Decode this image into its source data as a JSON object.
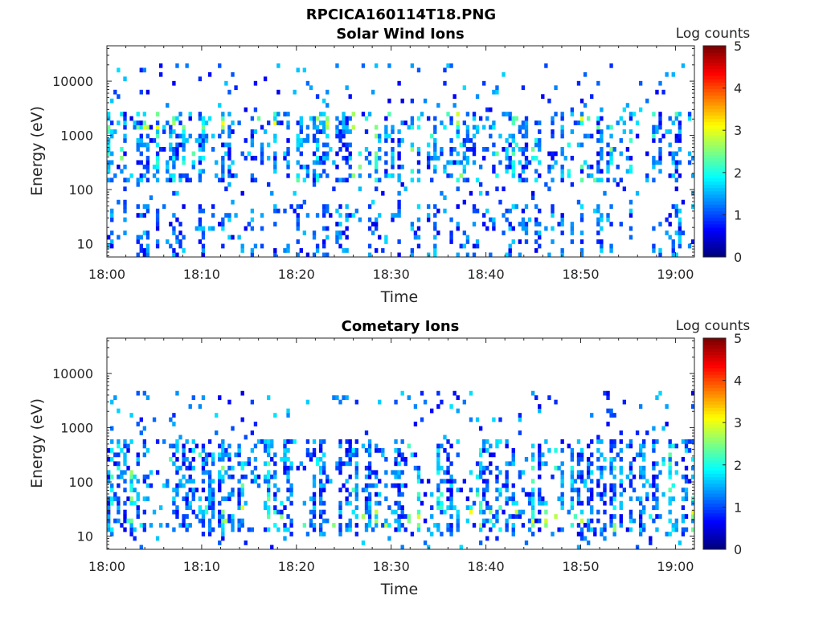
{
  "figure_title": "RPCICA160114T18.PNG",
  "chart_data": [
    {
      "type": "heatmap",
      "title": "Solar Wind Ions",
      "xlabel": "Time",
      "ylabel": "Energy (eV)",
      "x_ticks": [
        "18:00",
        "18:10",
        "18:20",
        "18:30",
        "18:40",
        "18:50",
        "19:00"
      ],
      "x_range": [
        "18:00",
        "19:02"
      ],
      "y_scale": "log",
      "y_ticks": [
        10,
        100,
        1000,
        10000
      ],
      "y_tick_labels": [
        "10",
        "100",
        "1000",
        "10000"
      ],
      "y_range": [
        5.7,
        45000
      ],
      "colorbar": {
        "label": "Log counts",
        "range": [
          0,
          5
        ],
        "ticks": [
          "0",
          "1",
          "2",
          "3",
          "4",
          "5"
        ],
        "colormap": "jet"
      },
      "pattern": {
        "seed": 7,
        "main_band": [
          150,
          2500
        ],
        "scatter_band": [
          6,
          20000
        ],
        "peak_band": [
          1200,
          2500
        ],
        "low_band": [
          6,
          50
        ]
      }
    },
    {
      "type": "heatmap",
      "title": "Cometary Ions",
      "xlabel": "Time",
      "ylabel": "Energy (eV)",
      "x_ticks": [
        "18:00",
        "18:10",
        "18:20",
        "18:30",
        "18:40",
        "18:50",
        "19:00"
      ],
      "x_range": [
        "18:00",
        "19:02"
      ],
      "y_scale": "log",
      "y_ticks": [
        10,
        100,
        1000,
        10000
      ],
      "y_tick_labels": [
        "10",
        "100",
        "1000",
        "10000"
      ],
      "y_range": [
        5.7,
        45000
      ],
      "colorbar": {
        "label": "Log counts",
        "range": [
          0,
          5
        ],
        "ticks": [
          "0",
          "1",
          "2",
          "3",
          "4",
          "5"
        ],
        "colormap": "jet"
      },
      "pattern": {
        "seed": 23,
        "main_band": [
          12,
          600
        ],
        "scatter_band": [
          6,
          4500
        ],
        "peak_band": [
          15,
          40
        ],
        "low_band": [
          10,
          60
        ]
      }
    }
  ]
}
